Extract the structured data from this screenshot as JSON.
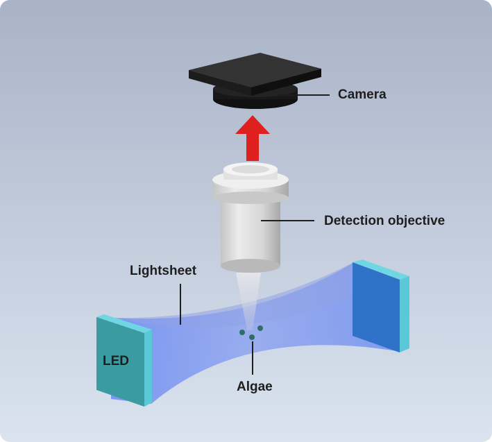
{
  "labels": {
    "camera": "Camera",
    "detection_objective": "Detection objective",
    "lightsheet": "Lightsheet",
    "led": "LED",
    "algae": "Algae"
  },
  "colors": {
    "background_top": "#aab4c8",
    "background_bottom": "#d8e2ee",
    "camera": "#2a2a2a",
    "arrow": "#e01e1e",
    "objective": "#d8d8d8",
    "lightsheet": "#6f8cf0",
    "led_front": "#3a9aa0",
    "led_edge": "#5cc8d6",
    "right_panel": "#2f72c8",
    "algae": "#2d6e6a",
    "leader_line": "#1e1e1e"
  }
}
